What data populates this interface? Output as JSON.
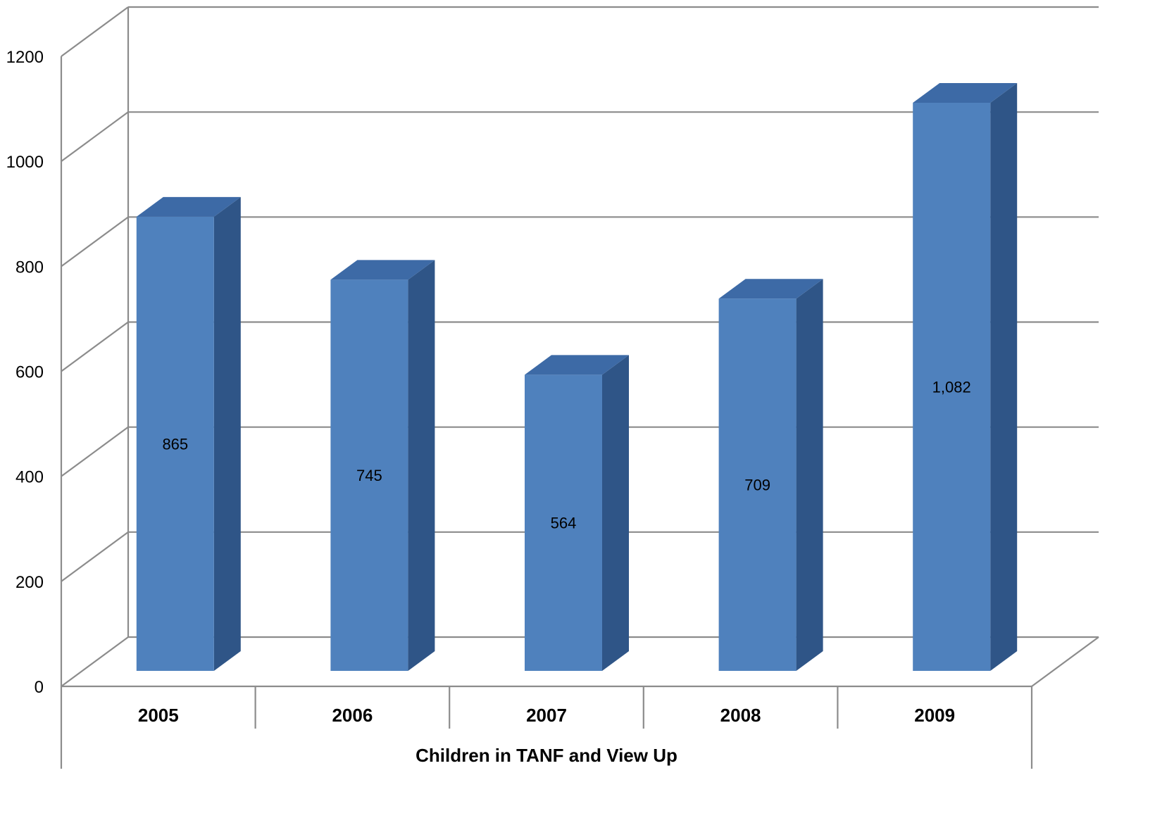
{
  "chart_data": {
    "type": "bar",
    "style": "3d-column",
    "categories": [
      "2005",
      "2006",
      "2007",
      "2008",
      "2009"
    ],
    "values": [
      865,
      745,
      564,
      709,
      1082
    ],
    "data_labels": [
      "865",
      "745",
      "564",
      "709",
      "1,082"
    ],
    "y_ticks": [
      "0",
      "200",
      "400",
      "600",
      "800",
      "1000",
      "1200"
    ],
    "ylim": [
      0,
      1200
    ],
    "xlabel": "Children in TANF and View Up",
    "ylabel": "",
    "title": "",
    "grid": true,
    "legend": "none",
    "colors": {
      "bar_front": "#4f81bd",
      "bar_side": "#2f5587",
      "bar_top": "#3d6aa6",
      "grid": "#8c8c8c"
    }
  }
}
